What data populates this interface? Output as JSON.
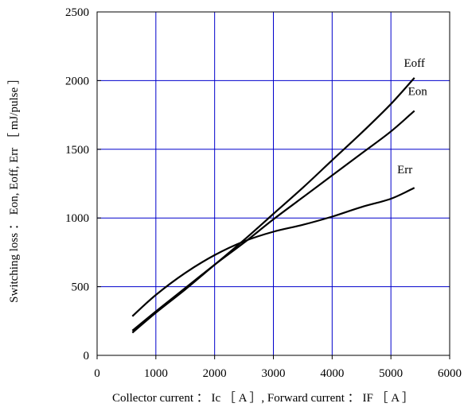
{
  "chart_data": {
    "type": "line",
    "xlabel": "Collector current ： Ic ［ A ］, Forward current ： IF ［ A ］",
    "ylabel": "Switching loss ： Eon, Eoff, Err ［ mJ/pulse ］",
    "xlim": [
      0,
      6000
    ],
    "ylim": [
      0,
      2500
    ],
    "xticks": [
      0,
      1000,
      2000,
      3000,
      4000,
      5000,
      6000
    ],
    "yticks": [
      0,
      500,
      1000,
      1500,
      2000,
      2500
    ],
    "xtick_labels": [
      "0",
      "1000",
      "2000",
      "3000",
      "4000",
      "5000",
      "6000"
    ],
    "ytick_labels": [
      "0",
      "500",
      "1000",
      "1500",
      "2000",
      "2500"
    ],
    "grid": true,
    "grid_color": "#0000cc",
    "line_color": "#000000",
    "series": [
      {
        "name": "Eoff",
        "x": [
          600,
          1000,
          1500,
          2000,
          2500,
          3000,
          3500,
          4000,
          4500,
          5000,
          5400
        ],
        "y": [
          165,
          310,
          480,
          660,
          840,
          1030,
          1220,
          1420,
          1620,
          1830,
          2020
        ]
      },
      {
        "name": "Eon",
        "x": [
          600,
          1000,
          1500,
          2000,
          2500,
          3000,
          3500,
          4000,
          4500,
          5000,
          5400
        ],
        "y": [
          180,
          320,
          490,
          660,
          820,
          990,
          1150,
          1310,
          1470,
          1630,
          1780
        ]
      },
      {
        "name": "Err",
        "x": [
          600,
          1000,
          1500,
          2000,
          2500,
          3000,
          3500,
          4000,
          4500,
          5000,
          5400
        ],
        "y": [
          285,
          440,
          600,
          730,
          830,
          900,
          950,
          1010,
          1080,
          1140,
          1220
        ]
      }
    ]
  }
}
